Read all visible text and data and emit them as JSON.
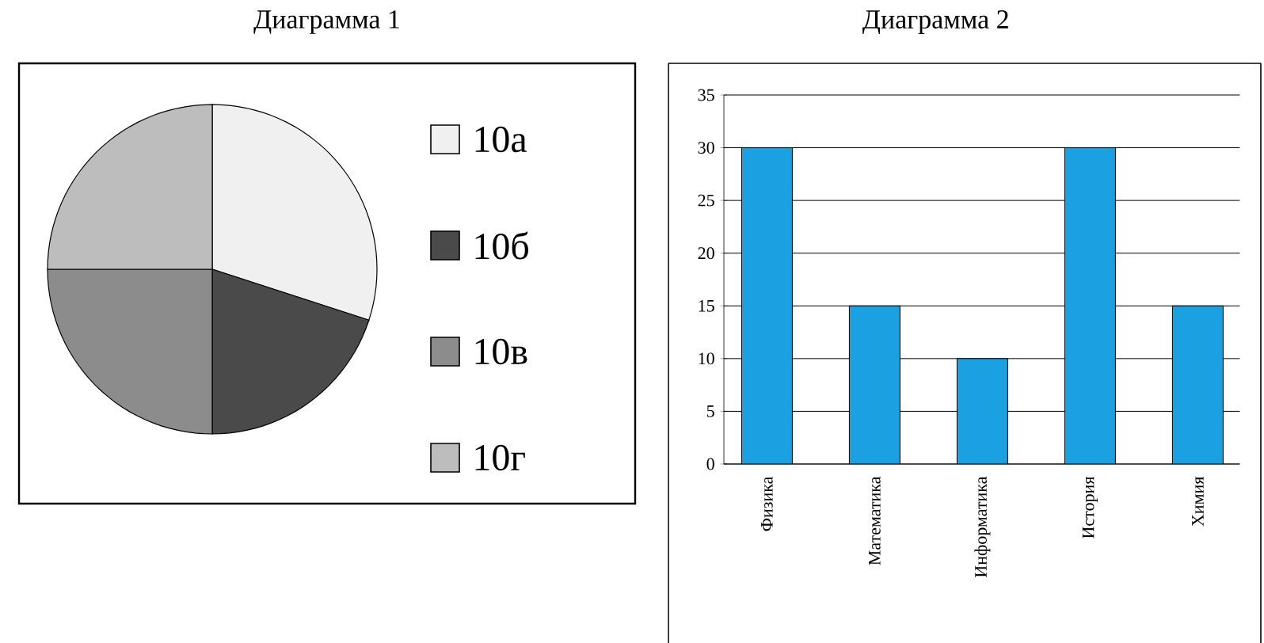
{
  "chart_data": [
    {
      "type": "pie",
      "title": "Диаграмма 1",
      "categories": [
        "10а",
        "10б",
        "10в",
        "10г"
      ],
      "values": [
        30,
        20,
        25,
        25
      ],
      "colors": [
        "#f0f0f0",
        "#4a4a4a",
        "#8c8c8c",
        "#bdbdbd"
      ],
      "legend": "right"
    },
    {
      "type": "bar",
      "title": "Диаграмма 2",
      "categories": [
        "Физика",
        "Математика",
        "Информатика",
        "История",
        "Химия"
      ],
      "values": [
        30,
        15,
        10,
        30,
        15
      ],
      "color": "#1ba1e2",
      "ylim": [
        0,
        35
      ],
      "yticks": [
        0,
        5,
        10,
        15,
        20,
        25,
        30,
        35
      ],
      "grid": "y"
    }
  ]
}
